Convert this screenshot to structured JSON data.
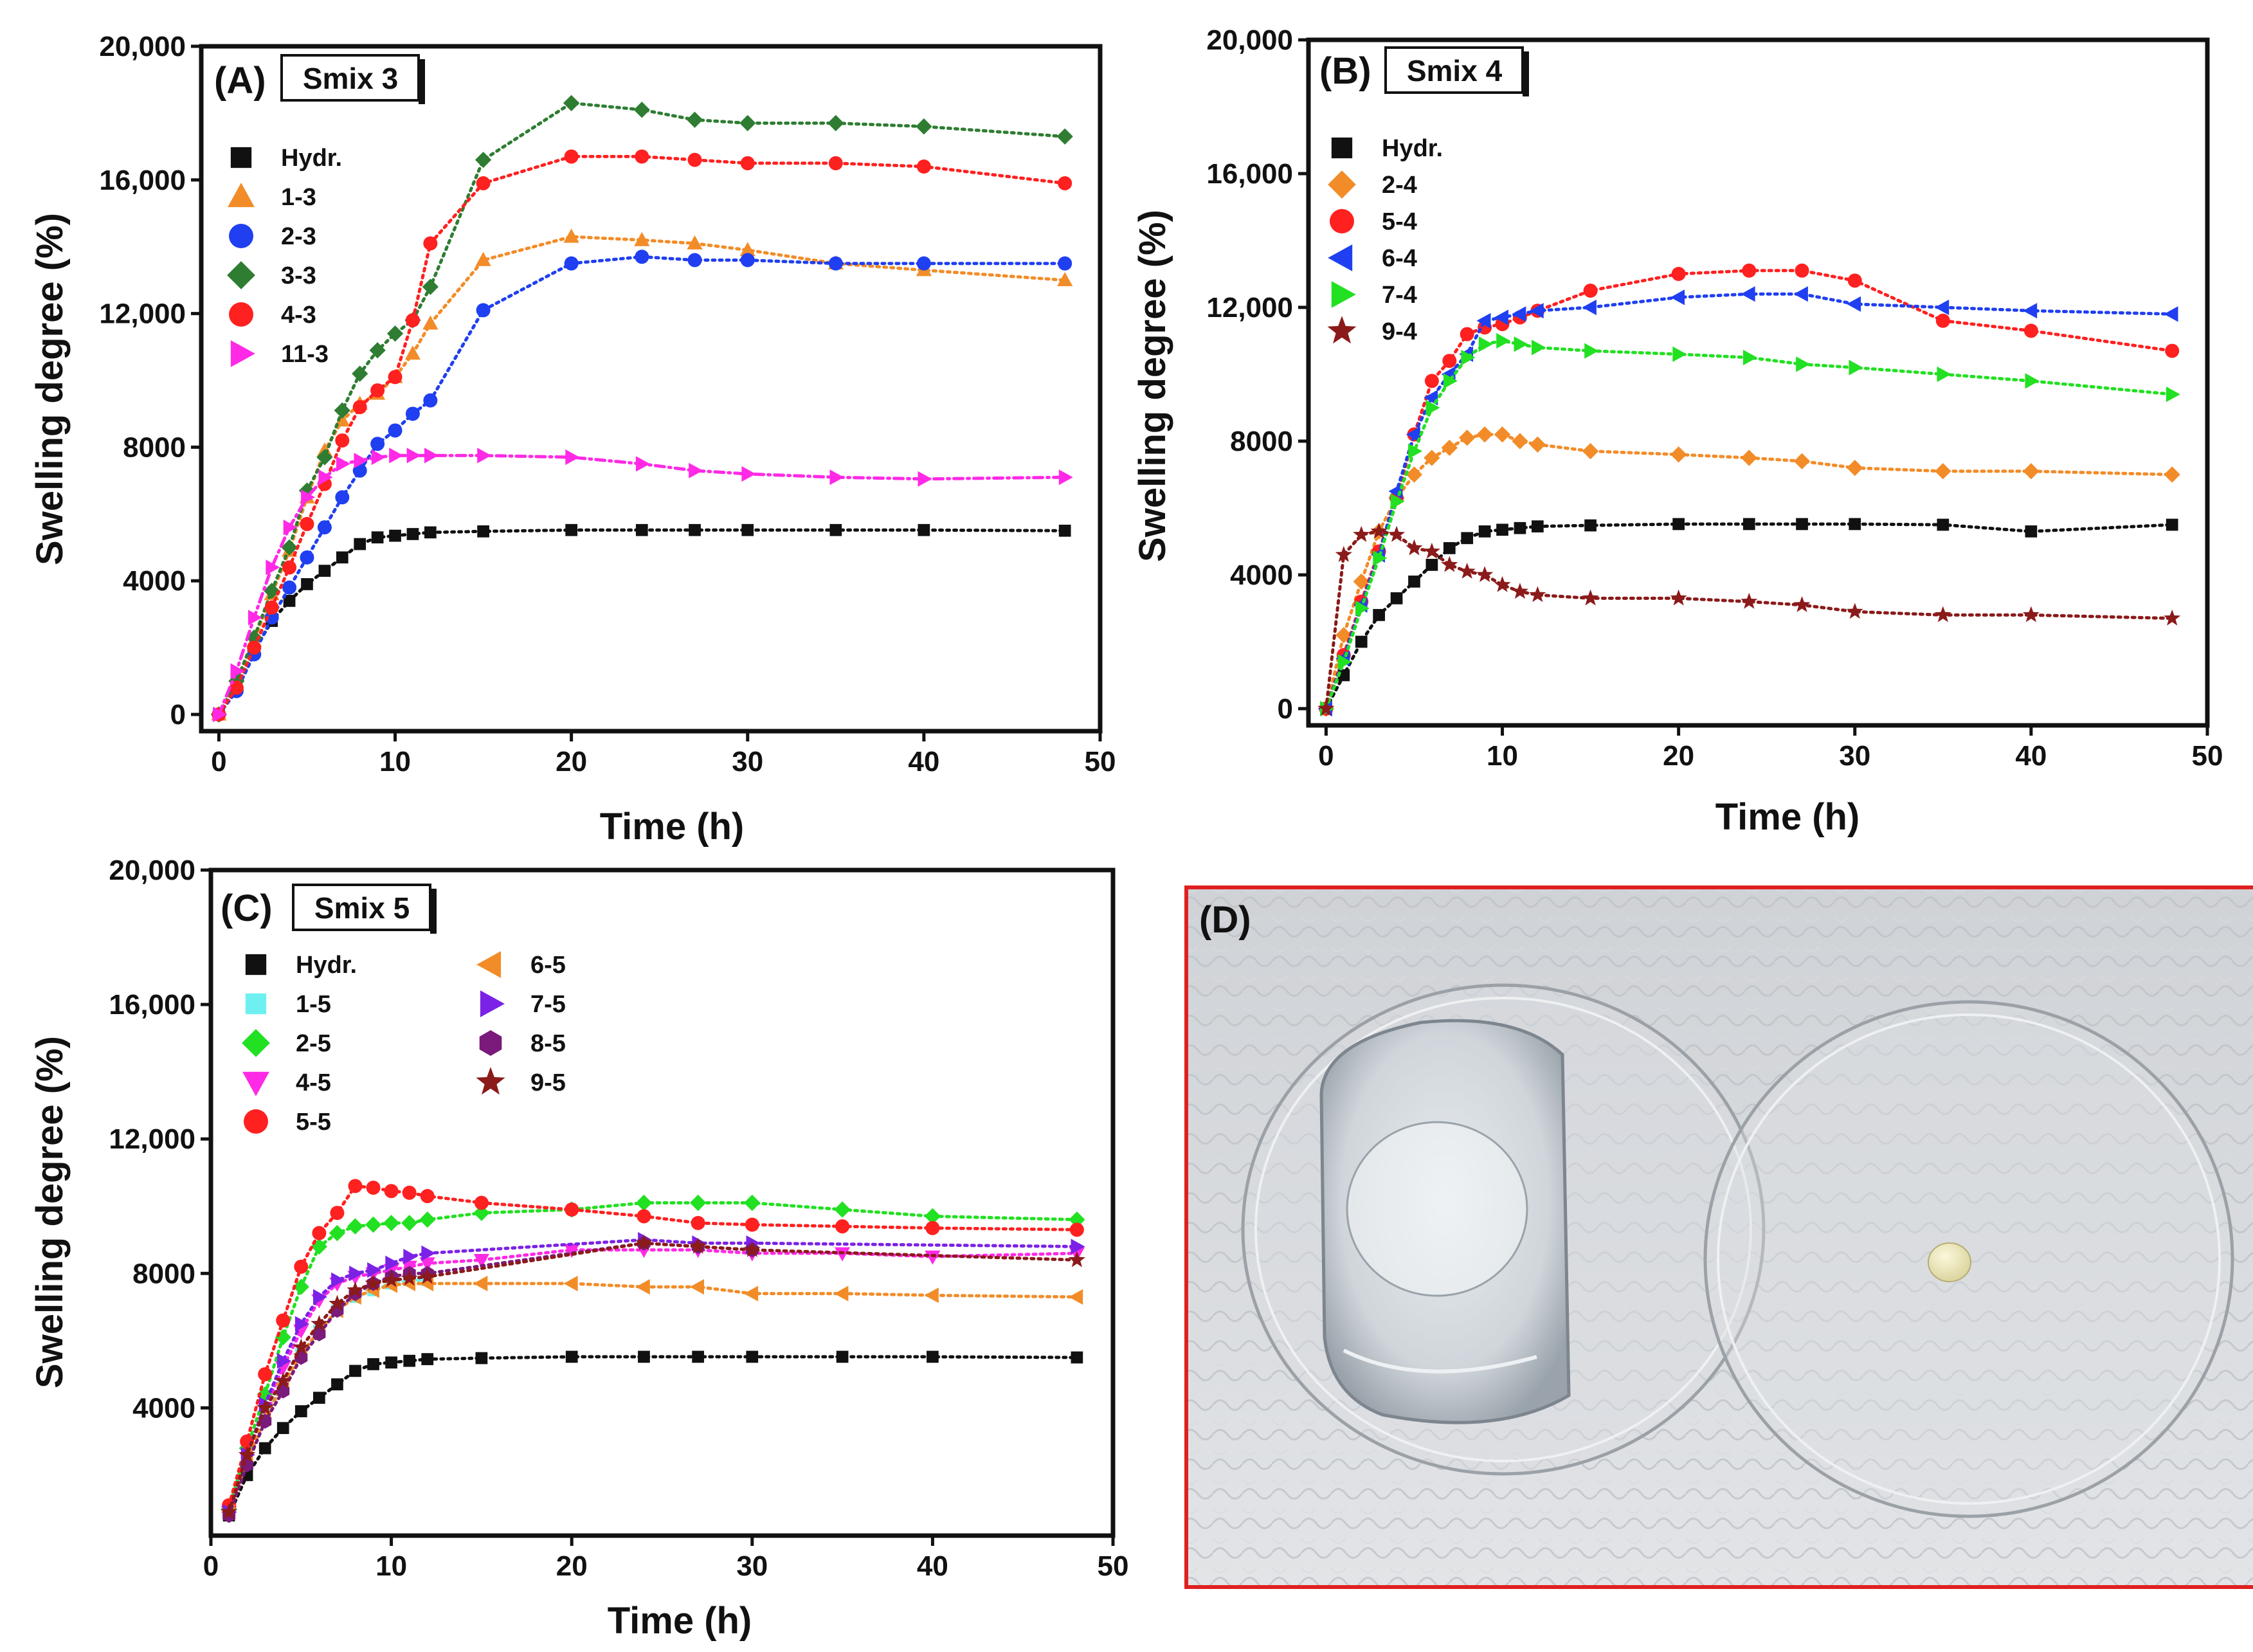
{
  "chart_data": [
    {
      "type": "line",
      "panel_label": "(A)",
      "title": "Smix 3",
      "xlabel": "Time (h)",
      "ylabel": "Swelling degree (%)",
      "xlim": [
        -1,
        50
      ],
      "ylim": [
        -500,
        20000
      ],
      "xticks": [
        0,
        10,
        20,
        30,
        40,
        50
      ],
      "yticks": [
        0,
        4000,
        8000,
        12000,
        16000,
        20000
      ],
      "xtick_labels": [
        "0",
        "10",
        "20",
        "30",
        "40",
        "50"
      ],
      "ytick_labels": [
        "0",
        "4000",
        "8000",
        "12,000",
        "16,000",
        "20,000"
      ],
      "legend_position": "top-left",
      "series": [
        {
          "name": "Hydr.",
          "color": "#111111",
          "marker": "square",
          "x": [
            0,
            1,
            2,
            3,
            4,
            5,
            6,
            7,
            8,
            9,
            10,
            11,
            12,
            15,
            20,
            24,
            27,
            30,
            35,
            40,
            48
          ],
          "y": [
            0,
            800,
            1900,
            2800,
            3400,
            3900,
            4300,
            4700,
            5100,
            5300,
            5350,
            5400,
            5450,
            5480,
            5520,
            5520,
            5520,
            5520,
            5520,
            5520,
            5500
          ]
        },
        {
          "name": "1-3",
          "color": "#f28c28",
          "marker": "triangle-up",
          "x": [
            0,
            1,
            2,
            3,
            4,
            5,
            6,
            7,
            8,
            9,
            10,
            11,
            12,
            15,
            20,
            24,
            27,
            30,
            35,
            40,
            48
          ],
          "y": [
            0,
            900,
            2200,
            3600,
            4900,
            6500,
            7900,
            8800,
            9300,
            9600,
            10100,
            10800,
            11700,
            13600,
            14300,
            14200,
            14100,
            13900,
            13500,
            13300,
            13000
          ]
        },
        {
          "name": "2-3",
          "color": "#1f3ff0",
          "marker": "circle",
          "x": [
            0,
            1,
            2,
            3,
            4,
            5,
            6,
            7,
            8,
            9,
            10,
            11,
            12,
            15,
            20,
            24,
            27,
            30,
            35,
            40,
            48
          ],
          "y": [
            0,
            700,
            1800,
            2900,
            3800,
            4700,
            5600,
            6500,
            7300,
            8100,
            8500,
            9000,
            9400,
            12100,
            13500,
            13700,
            13600,
            13600,
            13500,
            13500,
            13500
          ]
        },
        {
          "name": "3-3",
          "color": "#2e7d32",
          "marker": "diamond",
          "x": [
            0,
            1,
            2,
            3,
            4,
            5,
            6,
            7,
            8,
            9,
            10,
            11,
            12,
            15,
            20,
            24,
            27,
            30,
            35,
            40,
            48
          ],
          "y": [
            0,
            1000,
            2300,
            3700,
            5000,
            6700,
            7700,
            9100,
            10200,
            10900,
            11400,
            11800,
            12800,
            16600,
            18300,
            18100,
            17800,
            17700,
            17700,
            17600,
            17300
          ]
        },
        {
          "name": "4-3",
          "color": "#ff2020",
          "marker": "circle",
          "x": [
            0,
            1,
            2,
            3,
            4,
            5,
            6,
            7,
            8,
            9,
            10,
            11,
            12,
            15,
            20,
            24,
            27,
            30,
            35,
            40,
            48
          ],
          "y": [
            0,
            800,
            2000,
            3200,
            4400,
            5700,
            6900,
            8200,
            9200,
            9700,
            10100,
            11800,
            14100,
            15900,
            16700,
            16700,
            16600,
            16500,
            16500,
            16400,
            15900
          ]
        },
        {
          "name": "11-3",
          "color": "#ff29e6",
          "marker": "triangle-right",
          "x": [
            0,
            1,
            2,
            3,
            4,
            5,
            6,
            7,
            8,
            9,
            10,
            11,
            12,
            15,
            20,
            24,
            27,
            30,
            35,
            40,
            48
          ],
          "y": [
            0,
            1300,
            2900,
            4400,
            5600,
            6500,
            7100,
            7500,
            7600,
            7700,
            7750,
            7750,
            7750,
            7750,
            7700,
            7500,
            7300,
            7200,
            7100,
            7050,
            7100
          ]
        }
      ]
    },
    {
      "type": "line",
      "panel_label": "(B)",
      "title": "Smix 4",
      "xlabel": "Time (h)",
      "ylabel": "Swelling degree (%)",
      "xlim": [
        -1,
        50
      ],
      "ylim": [
        -500,
        20000
      ],
      "xticks": [
        0,
        10,
        20,
        30,
        40,
        50
      ],
      "yticks": [
        0,
        4000,
        8000,
        12000,
        16000,
        20000
      ],
      "xtick_labels": [
        "0",
        "10",
        "20",
        "30",
        "40",
        "50"
      ],
      "ytick_labels": [
        "0",
        "4000",
        "8000",
        "12,000",
        "16,000",
        "20,000"
      ],
      "legend_position": "top-left",
      "series": [
        {
          "name": "Hydr.",
          "color": "#111111",
          "marker": "square",
          "x": [
            0,
            1,
            2,
            3,
            4,
            5,
            6,
            7,
            8,
            9,
            10,
            11,
            12,
            15,
            20,
            24,
            27,
            30,
            35,
            40,
            48
          ],
          "y": [
            0,
            1000,
            2000,
            2800,
            3300,
            3800,
            4300,
            4800,
            5100,
            5300,
            5350,
            5400,
            5450,
            5480,
            5520,
            5520,
            5520,
            5520,
            5500,
            5300,
            5500
          ]
        },
        {
          "name": "2-4",
          "color": "#f28c28",
          "marker": "diamond",
          "x": [
            0,
            1,
            2,
            3,
            4,
            5,
            6,
            7,
            8,
            9,
            10,
            11,
            12,
            15,
            20,
            24,
            27,
            30,
            35,
            40,
            48
          ],
          "y": [
            0,
            2200,
            3800,
            5300,
            6300,
            7000,
            7500,
            7800,
            8100,
            8200,
            8200,
            8000,
            7900,
            7700,
            7600,
            7500,
            7400,
            7200,
            7100,
            7100,
            7000
          ]
        },
        {
          "name": "5-4",
          "color": "#ff2020",
          "marker": "circle",
          "x": [
            0,
            1,
            2,
            3,
            4,
            5,
            6,
            7,
            8,
            9,
            10,
            11,
            12,
            15,
            20,
            24,
            27,
            30,
            35,
            40,
            48
          ],
          "y": [
            0,
            1600,
            3200,
            4700,
            6300,
            8200,
            9800,
            10400,
            11200,
            11400,
            11500,
            11700,
            11900,
            12500,
            13000,
            13100,
            13100,
            12800,
            11600,
            11300,
            10700
          ]
        },
        {
          "name": "6-4",
          "color": "#1f3ff0",
          "marker": "triangle-left",
          "x": [
            0,
            1,
            2,
            3,
            4,
            5,
            6,
            7,
            8,
            9,
            10,
            11,
            12,
            15,
            20,
            24,
            27,
            30,
            35,
            40,
            48
          ],
          "y": [
            0,
            1500,
            3100,
            4600,
            6500,
            8200,
            9300,
            10000,
            10600,
            11600,
            11700,
            11800,
            11900,
            12000,
            12300,
            12400,
            12400,
            12100,
            12000,
            11900,
            11800
          ]
        },
        {
          "name": "7-4",
          "color": "#22e022",
          "marker": "triangle-right",
          "x": [
            0,
            1,
            2,
            3,
            4,
            5,
            6,
            7,
            8,
            9,
            10,
            11,
            12,
            15,
            20,
            24,
            27,
            30,
            35,
            40,
            48
          ],
          "y": [
            0,
            1400,
            3000,
            4500,
            6200,
            7700,
            9000,
            9800,
            10500,
            10900,
            11000,
            10900,
            10800,
            10700,
            10600,
            10500,
            10300,
            10200,
            10000,
            9800,
            9400
          ]
        },
        {
          "name": "9-4",
          "color": "#8b1a1a",
          "marker": "star",
          "x": [
            0,
            1,
            2,
            3,
            4,
            5,
            6,
            7,
            8,
            9,
            10,
            11,
            12,
            15,
            20,
            24,
            27,
            30,
            35,
            40,
            48
          ],
          "y": [
            0,
            4600,
            5200,
            5300,
            5200,
            4800,
            4700,
            4300,
            4100,
            4000,
            3700,
            3500,
            3400,
            3300,
            3300,
            3200,
            3100,
            2900,
            2800,
            2800,
            2700
          ]
        }
      ]
    },
    {
      "type": "line",
      "panel_label": "(C)",
      "title": "Smix 5",
      "xlabel": "Time (h)",
      "ylabel": "Swelling degree (%)",
      "xlim": [
        0,
        50
      ],
      "ylim": [
        200,
        20000
      ],
      "xticks": [
        0,
        10,
        20,
        30,
        40,
        50
      ],
      "yticks": [
        4000,
        8000,
        12000,
        16000,
        20000
      ],
      "xtick_labels": [
        "0",
        "10",
        "20",
        "30",
        "40",
        "50"
      ],
      "ytick_labels": [
        "4000",
        "8000",
        "12,000",
        "16,000",
        "20,000"
      ],
      "legend_position": "top-left",
      "series": [
        {
          "name": "Hydr.",
          "color": "#111111",
          "marker": "square",
          "x": [
            1,
            2,
            3,
            4,
            5,
            6,
            7,
            8,
            9,
            10,
            11,
            12,
            15,
            20,
            24,
            27,
            30,
            35,
            40,
            48
          ],
          "y": [
            800,
            2000,
            2800,
            3400,
            3900,
            4300,
            4700,
            5100,
            5300,
            5350,
            5400,
            5450,
            5480,
            5520,
            5520,
            5520,
            5520,
            5520,
            5520,
            5500
          ]
        },
        {
          "name": "1-5",
          "color": "#6ff0f0",
          "marker": "square",
          "x": [
            1,
            2,
            3,
            4,
            5,
            6,
            7,
            8,
            9,
            10,
            11,
            12
          ],
          "y": [
            900,
            2400,
            3800,
            4700,
            5600,
            6300,
            6900,
            7300,
            7500,
            7700,
            7800,
            7800
          ]
        },
        {
          "name": "2-5",
          "color": "#22e022",
          "marker": "diamond",
          "x": [
            1,
            2,
            3,
            4,
            5,
            6,
            7,
            8,
            9,
            10,
            11,
            12,
            15,
            20,
            24,
            27,
            30,
            35,
            40,
            48
          ],
          "y": [
            1000,
            2800,
            4400,
            6100,
            7600,
            8800,
            9200,
            9400,
            9450,
            9500,
            9500,
            9600,
            9800,
            9900,
            10100,
            10100,
            10100,
            9900,
            9700,
            9600
          ]
        },
        {
          "name": "4-5",
          "color": "#ff29e6",
          "marker": "triangle-down",
          "x": [
            1,
            2,
            3,
            4,
            5,
            6,
            7,
            8,
            9,
            10,
            11,
            12,
            15,
            20,
            24,
            27,
            30,
            35,
            40,
            48
          ],
          "y": [
            900,
            2500,
            4000,
            5200,
            6300,
            7200,
            7700,
            7900,
            8000,
            8100,
            8200,
            8300,
            8400,
            8700,
            8700,
            8700,
            8600,
            8600,
            8500,
            8600
          ]
        },
        {
          "name": "5-5",
          "color": "#ff2020",
          "marker": "circle",
          "x": [
            1,
            2,
            3,
            4,
            5,
            6,
            7,
            8,
            9,
            10,
            11,
            12,
            15,
            20,
            24,
            27,
            30,
            35,
            40,
            48
          ],
          "y": [
            1100,
            3000,
            5000,
            6600,
            8200,
            9200,
            9800,
            10600,
            10550,
            10450,
            10400,
            10300,
            10100,
            9900,
            9700,
            9500,
            9450,
            9400,
            9350,
            9300
          ]
        },
        {
          "name": "6-5",
          "color": "#f28c28",
          "marker": "triangle-left",
          "x": [
            1,
            2,
            3,
            4,
            5,
            6,
            7,
            8,
            9,
            10,
            11,
            12,
            15,
            20,
            24,
            27,
            30,
            35,
            40,
            48
          ],
          "y": [
            900,
            2400,
            3700,
            4700,
            5600,
            6300,
            6900,
            7300,
            7500,
            7650,
            7700,
            7700,
            7700,
            7700,
            7600,
            7600,
            7400,
            7400,
            7350,
            7300
          ]
        },
        {
          "name": "7-5",
          "color": "#7b22e6",
          "marker": "triangle-right",
          "x": [
            1,
            2,
            3,
            4,
            5,
            6,
            7,
            8,
            9,
            10,
            11,
            12,
            24,
            27,
            30,
            48
          ],
          "y": [
            900,
            2600,
            4100,
            5400,
            6500,
            7300,
            7800,
            8000,
            8100,
            8300,
            8500,
            8600,
            9000,
            8900,
            8900,
            8800
          ]
        },
        {
          "name": "8-5",
          "color": "#7a1a7a",
          "marker": "hexagon",
          "x": [
            1,
            2,
            3,
            4,
            5,
            6,
            7,
            8,
            9,
            10,
            11,
            12,
            24,
            27,
            30
          ],
          "y": [
            800,
            2300,
            3600,
            4500,
            5500,
            6200,
            6900,
            7400,
            7700,
            7900,
            8000,
            8000,
            8900,
            8800,
            8700
          ]
        },
        {
          "name": "9-5",
          "color": "#8b1a1a",
          "marker": "star",
          "x": [
            1,
            2,
            3,
            4,
            5,
            6,
            7,
            8,
            9,
            10,
            11,
            12,
            24,
            27,
            30,
            48
          ],
          "y": [
            900,
            2600,
            4000,
            4800,
            5800,
            6500,
            7100,
            7500,
            7700,
            7800,
            7850,
            7900,
            8900,
            8800,
            8700,
            8400
          ]
        }
      ]
    }
  ],
  "photo_panel": {
    "label": "(D)",
    "border_color": "#e02020"
  }
}
